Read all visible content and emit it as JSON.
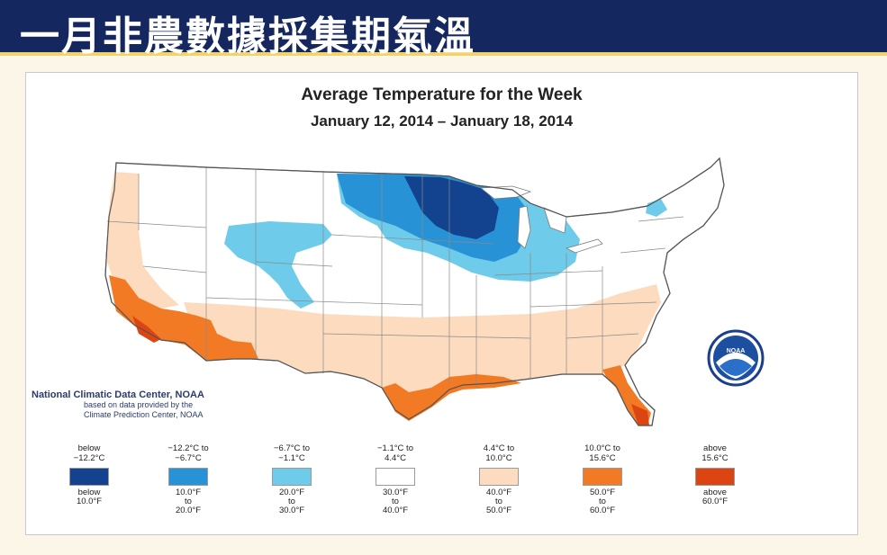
{
  "slide": {
    "title": "一月非農數據採集期氣溫"
  },
  "map": {
    "title": "Average Temperature for the Week",
    "subtitle": "January 12, 2014 – January 18, 2014",
    "credit_main": "National Climatic Data Center, NOAA",
    "credit_sub_1": "based on data provided by the",
    "credit_sub_2": "Climate Prediction Center, NOAA",
    "logo_text": "NOAA",
    "colors": {
      "c1": "#13438e",
      "c2": "#2793d6",
      "c3": "#6ecbea",
      "c4": "#ffffff",
      "c5": "#fddbbf",
      "c6": "#f27a24",
      "c7": "#dc4512"
    },
    "legend": [
      {
        "celsius": "below\n−12.2°C",
        "fahrenheit": "below\n10.0°F",
        "color": "#13438e"
      },
      {
        "celsius": "−12.2°C to\n−6.7°C",
        "fahrenheit": "10.0°F\nto\n20.0°F",
        "color": "#2793d6"
      },
      {
        "celsius": "−6.7°C to\n−1.1°C",
        "fahrenheit": "20.0°F\nto\n30.0°F",
        "color": "#6ecbea"
      },
      {
        "celsius": "−1.1°C to\n4.4°C",
        "fahrenheit": "30.0°F\nto\n40.0°F",
        "color": "#ffffff"
      },
      {
        "celsius": "4.4°C to\n10.0°C",
        "fahrenheit": "40.0°F\nto\n50.0°F",
        "color": "#fddbbf"
      },
      {
        "celsius": "10.0°C to\n15.6°C",
        "fahrenheit": "50.0°F\nto\n60.0°F",
        "color": "#f27a24"
      },
      {
        "celsius": "above\n15.6°C",
        "fahrenheit": "above\n60.0°F",
        "color": "#dc4512"
      }
    ]
  }
}
